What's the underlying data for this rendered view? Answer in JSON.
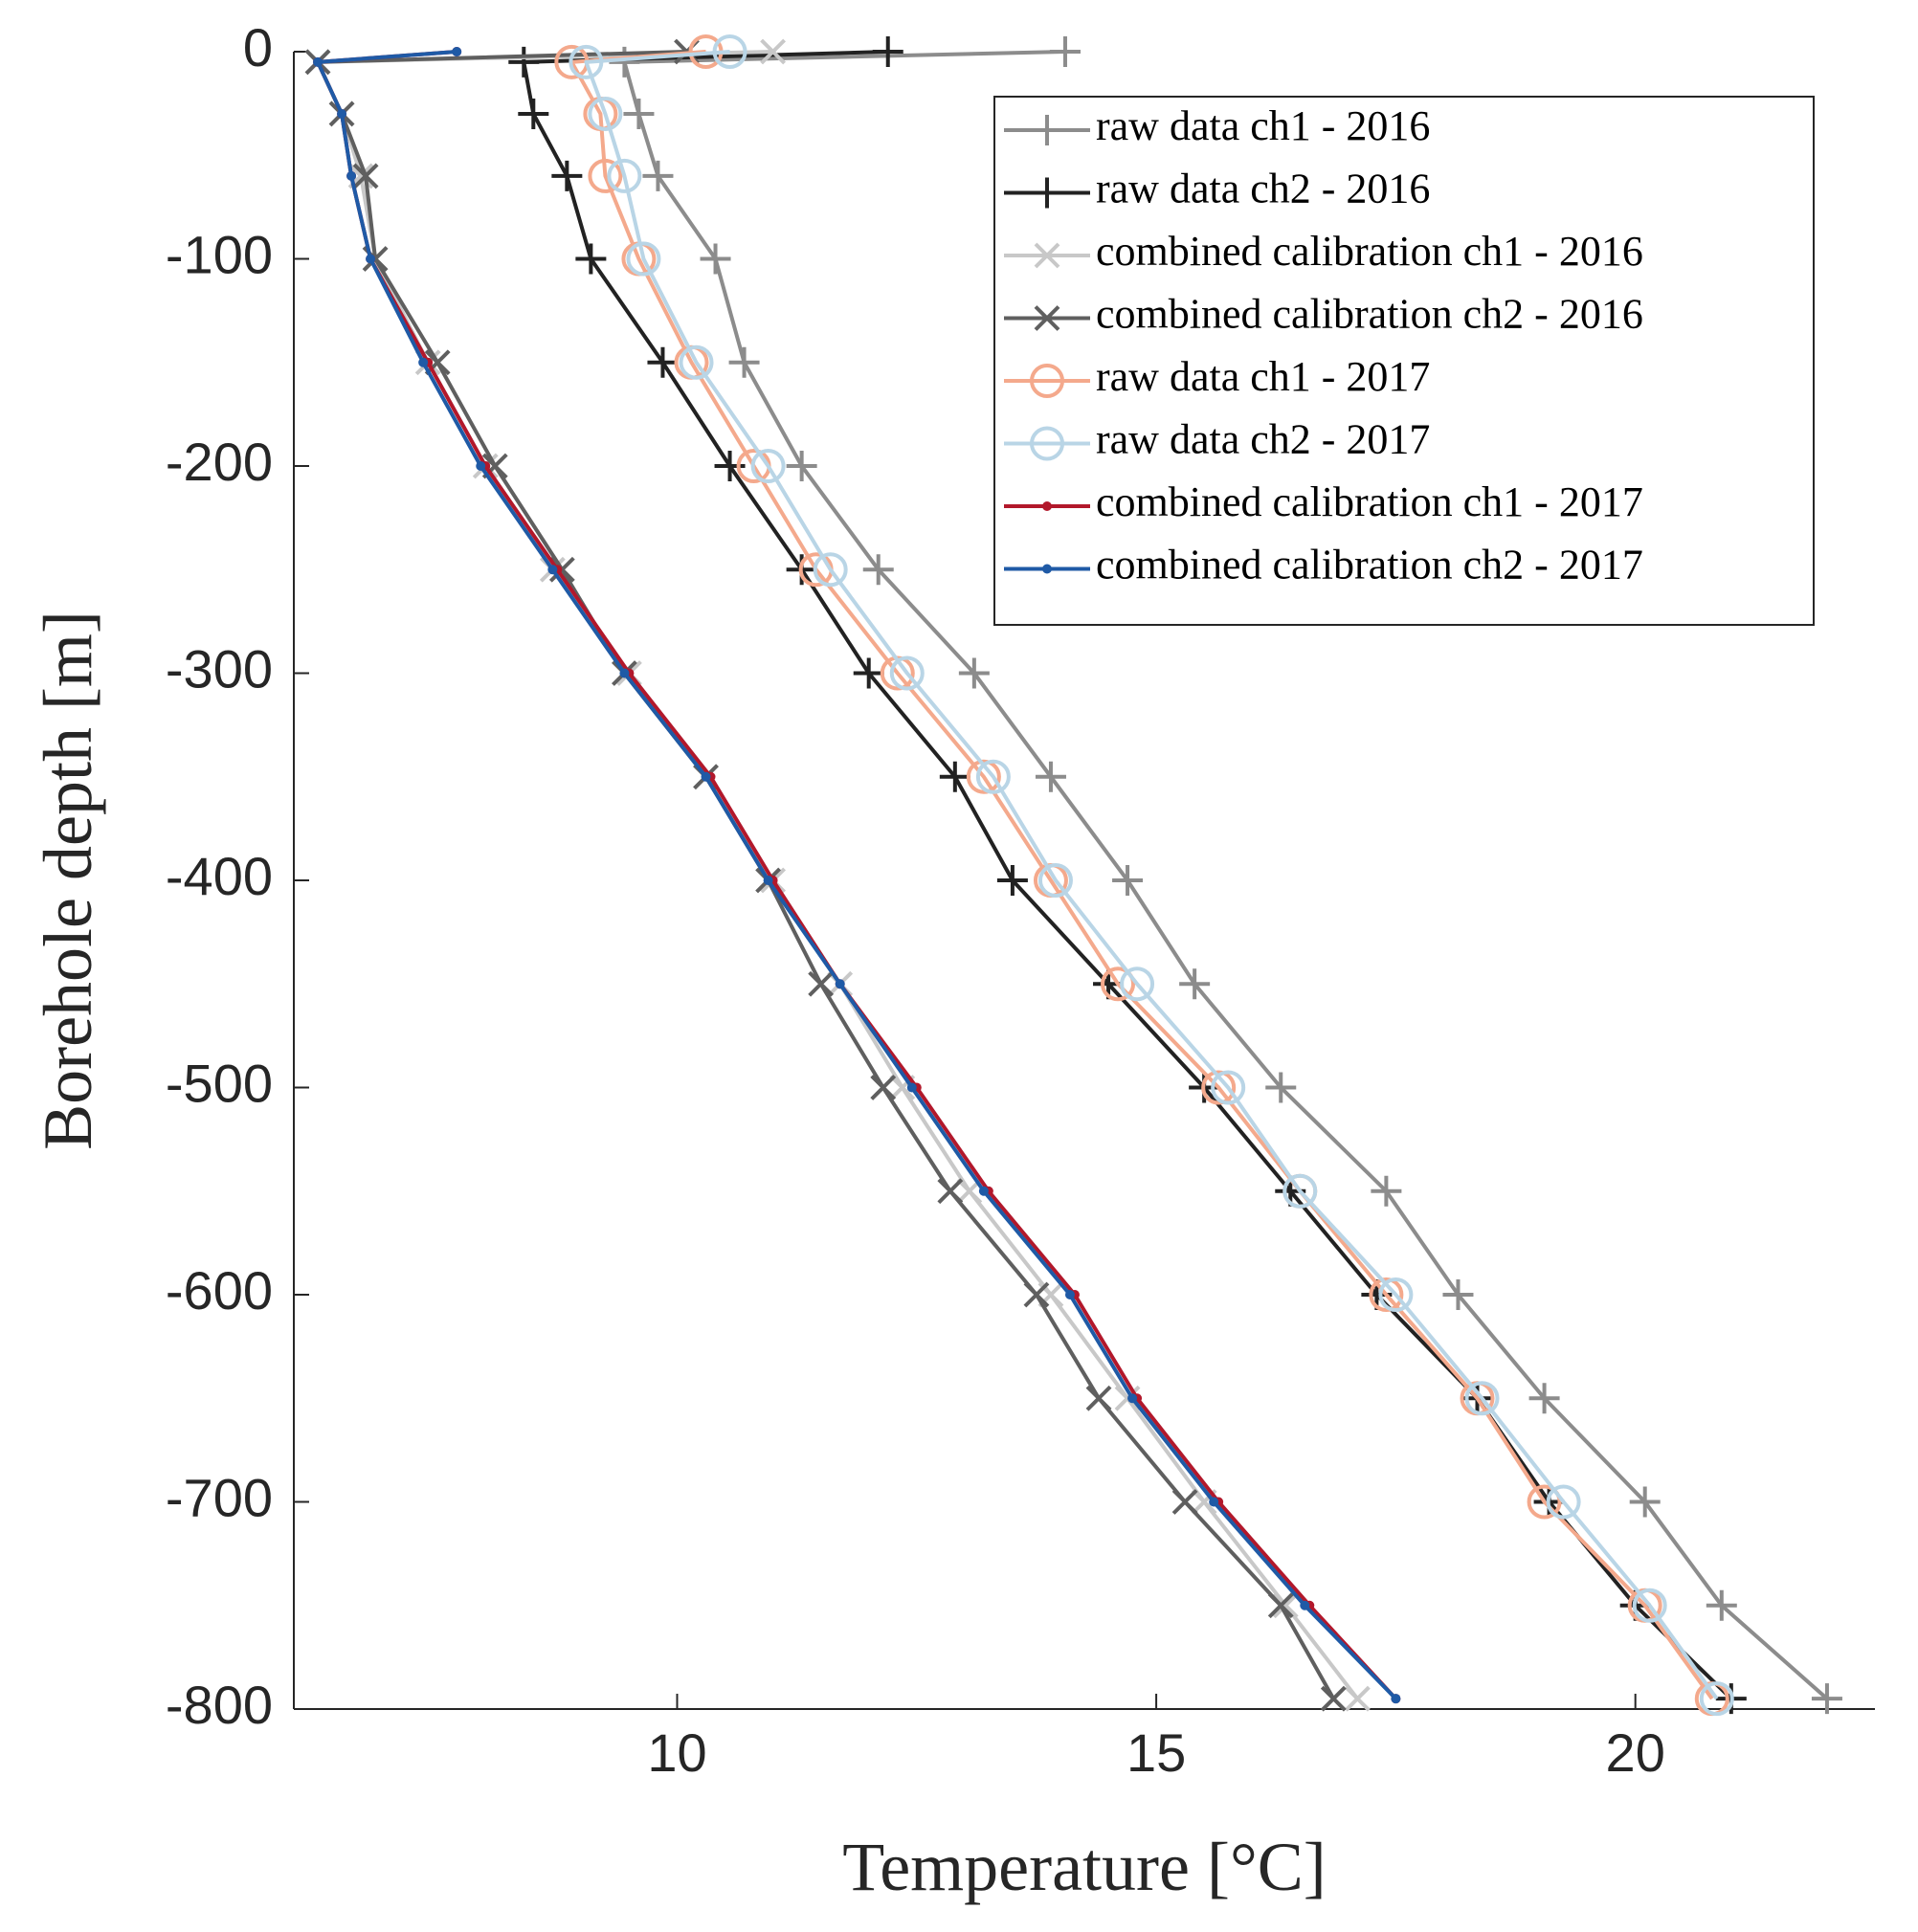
{
  "chart_data": {
    "type": "line",
    "xlabel": "Temperature [°C]",
    "ylabel": "Borehole depth [m]",
    "xlim": [
      6,
      22.5
    ],
    "ylim": [
      -800,
      0
    ],
    "xticks": [
      10,
      15,
      20
    ],
    "yticks": [
      -800,
      -700,
      -600,
      -500,
      -400,
      -300,
      -200,
      -100,
      0
    ],
    "legend": "upper right",
    "y": [
      0,
      -5,
      -30,
      -60,
      -100,
      -150,
      -200,
      -250,
      -300,
      -350,
      -400,
      -450,
      -500,
      -550,
      -600,
      -650,
      -700,
      -750,
      -795
    ],
    "series": [
      {
        "name": "raw data ch1 - 2016",
        "color": "#8c8c8c",
        "marker": "plus",
        "x": [
          14.05,
          9.45,
          9.6,
          9.8,
          10.4,
          10.7,
          11.3,
          12.1,
          13.1,
          13.9,
          14.7,
          15.4,
          16.3,
          17.4,
          18.15,
          19.05,
          20.1,
          20.9,
          22.0
        ]
      },
      {
        "name": "raw data ch2 - 2016",
        "color": "#222222",
        "marker": "plus",
        "x": [
          12.2,
          8.4,
          8.5,
          8.85,
          9.1,
          9.85,
          10.55,
          11.3,
          12.0,
          12.9,
          13.5,
          14.5,
          15.5,
          16.4,
          17.3,
          18.35,
          19.1,
          20.0,
          21.0
        ]
      },
      {
        "name": "combined calibration ch1 - 2016",
        "color": "#c8c8c8",
        "marker": "x",
        "x": [
          11.0,
          6.25,
          6.5,
          6.7,
          6.85,
          7.4,
          8.0,
          8.7,
          9.5,
          10.3,
          11.0,
          11.7,
          12.35,
          13.05,
          13.9,
          14.7,
          15.5,
          16.35,
          17.1
        ]
      },
      {
        "name": "combined calibration ch2 - 2016",
        "color": "#5f5f5f",
        "marker": "x",
        "x": [
          10.1,
          6.25,
          6.5,
          6.75,
          6.85,
          7.5,
          8.1,
          8.8,
          9.45,
          10.3,
          10.95,
          11.5,
          12.15,
          12.85,
          13.75,
          14.4,
          15.3,
          16.3,
          16.85
        ]
      },
      {
        "name": "raw data ch1 - 2017",
        "color": "#f4a98c",
        "marker": "circle",
        "x": [
          10.3,
          8.9,
          9.2,
          9.25,
          9.6,
          10.15,
          10.8,
          11.45,
          12.3,
          13.2,
          13.9,
          14.6,
          15.65,
          16.5,
          17.4,
          18.35,
          19.05,
          20.1,
          20.8
        ]
      },
      {
        "name": "raw data ch2 - 2017",
        "color": "#b9d5e6",
        "marker": "circle",
        "x": [
          10.55,
          9.05,
          9.25,
          9.45,
          9.65,
          10.2,
          10.95,
          11.6,
          12.4,
          13.3,
          13.95,
          14.8,
          15.75,
          16.5,
          17.5,
          18.4,
          19.25,
          20.15,
          20.85
        ]
      },
      {
        "name": "combined calibration ch1 - 2017",
        "color": "#b2182b",
        "marker": "dot",
        "x": [
          7.7,
          6.25,
          6.5,
          6.6,
          6.8,
          7.4,
          8.0,
          8.75,
          9.5,
          10.35,
          11.0,
          11.7,
          12.5,
          13.25,
          14.15,
          14.8,
          15.65,
          16.6,
          17.5
        ]
      },
      {
        "name": "combined calibration ch2 - 2017",
        "color": "#1f5aa6",
        "marker": "dot",
        "x": [
          7.7,
          6.25,
          6.5,
          6.6,
          6.8,
          7.35,
          7.95,
          8.7,
          9.45,
          10.3,
          10.95,
          11.7,
          12.45,
          13.2,
          14.1,
          14.75,
          15.6,
          16.55,
          17.5
        ]
      }
    ]
  }
}
